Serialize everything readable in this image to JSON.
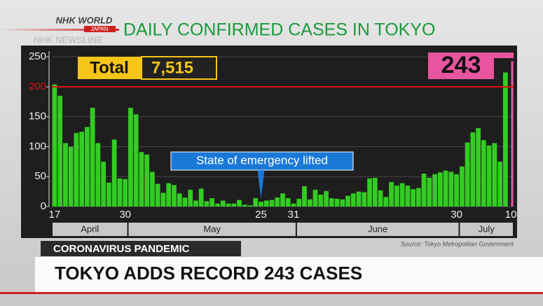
{
  "logo": {
    "brand": "NHK WORLD",
    "sub": "JAPAN",
    "program": "NHK NEWSLINE"
  },
  "chart_data": {
    "type": "bar",
    "title": "DAILY CONFIRMED CASES IN TOKYO",
    "categories": [
      "17",
      null,
      null,
      null,
      null,
      null,
      null,
      null,
      null,
      null,
      null,
      null,
      null,
      "30",
      null,
      null,
      null,
      null,
      null,
      null,
      null,
      null,
      null,
      null,
      null,
      null,
      null,
      null,
      null,
      null,
      null,
      null,
      null,
      null,
      null,
      null,
      null,
      null,
      "25",
      null,
      null,
      null,
      null,
      null,
      "31",
      null,
      null,
      null,
      null,
      null,
      null,
      null,
      null,
      null,
      null,
      null,
      null,
      null,
      null,
      null,
      null,
      null,
      null,
      null,
      null,
      null,
      null,
      null,
      null,
      null,
      null,
      null,
      null,
      null,
      "30",
      null,
      null,
      null,
      null,
      null,
      null,
      null,
      null,
      null,
      "10"
    ],
    "values": [
      204,
      185,
      106,
      100,
      123,
      125,
      133,
      165,
      106,
      75,
      40,
      112,
      47,
      46,
      165,
      154,
      91,
      87,
      58,
      38,
      23,
      39,
      36,
      22,
      15,
      28,
      10,
      30,
      9,
      14,
      5,
      10,
      5,
      5,
      11,
      3,
      2,
      14,
      8,
      10,
      11,
      15,
      22,
      14,
      5,
      13,
      34,
      12,
      28,
      20,
      26,
      14,
      13,
      12,
      18,
      22,
      25,
      24,
      47,
      48,
      27,
      16,
      41,
      35,
      39,
      35,
      29,
      31,
      55,
      48,
      54,
      57,
      60,
      58,
      54,
      67,
      107,
      124,
      131,
      111,
      102,
      106,
      75,
      224,
      243
    ],
    "color": "#33cc22",
    "highlight_color": "#e8559f",
    "months": [
      "April",
      "May",
      "June",
      "July"
    ],
    "ylim": [
      0,
      255
    ],
    "yticks": [
      0,
      50,
      100,
      150,
      200,
      250
    ],
    "grid": true,
    "reference_line": {
      "value": 200,
      "color": "#e01010"
    },
    "total_label": "Total",
    "total": {
      "value": 7515,
      "label": "7,515"
    },
    "annotation": "State of emergency lifted",
    "source": "Source: Tokyo Metropolitan Government"
  },
  "lower_third": {
    "tag": "CORONAVIRUS PANDEMIC",
    "headline": "TOKYO ADDS RECORD 243 CASES"
  }
}
